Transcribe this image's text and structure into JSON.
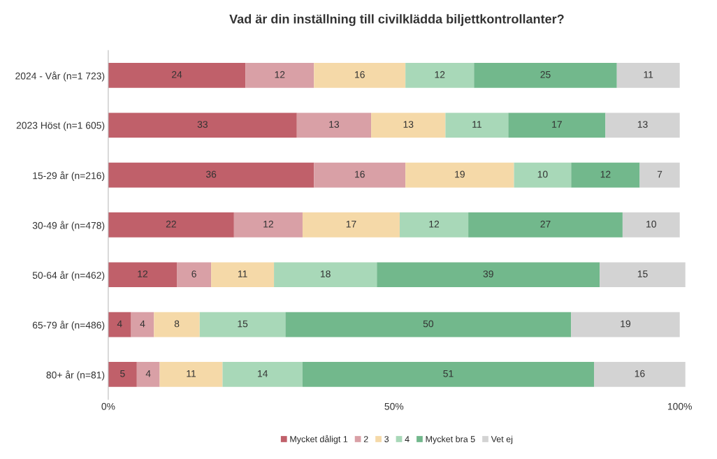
{
  "chart_data": {
    "type": "bar",
    "orientation": "horizontal",
    "stacked": true,
    "title": "Vad är din inställning till civilklädda biljettkontrollanter?",
    "categories": [
      "2024 - Vår (n=1 723)",
      "2023 Höst (n=1 605)",
      "15-29 år (n=216)",
      "30-49 år (n=478)",
      "50-64 år (n=462)",
      "65-79 år (n=486)",
      "80+ år (n=81)"
    ],
    "series": [
      {
        "name": "Mycket dåligt 1",
        "color": "#c0606a",
        "values": [
          24,
          33,
          36,
          22,
          12,
          4,
          5
        ]
      },
      {
        "name": "2",
        "color": "#d9a0a6",
        "values": [
          12,
          13,
          16,
          12,
          6,
          4,
          4
        ]
      },
      {
        "name": "3",
        "color": "#f5d9a8",
        "values": [
          16,
          13,
          19,
          17,
          11,
          8,
          11
        ]
      },
      {
        "name": "4",
        "color": "#a8d8b8",
        "values": [
          12,
          11,
          10,
          12,
          18,
          15,
          14
        ]
      },
      {
        "name": "Mycket bra 5",
        "color": "#72b88c",
        "values": [
          25,
          17,
          12,
          27,
          39,
          50,
          51
        ]
      },
      {
        "name": "Vet ej",
        "color": "#d3d3d3",
        "values": [
          11,
          13,
          7,
          10,
          15,
          19,
          16
        ]
      }
    ],
    "xlim": [
      0,
      101
    ],
    "xticks": [
      {
        "value": 0,
        "label": "0%"
      },
      {
        "value": 50,
        "label": "50%"
      },
      {
        "value": 100,
        "label": "100%"
      }
    ],
    "data_labels": true,
    "legend": "bottom",
    "grid": false
  }
}
